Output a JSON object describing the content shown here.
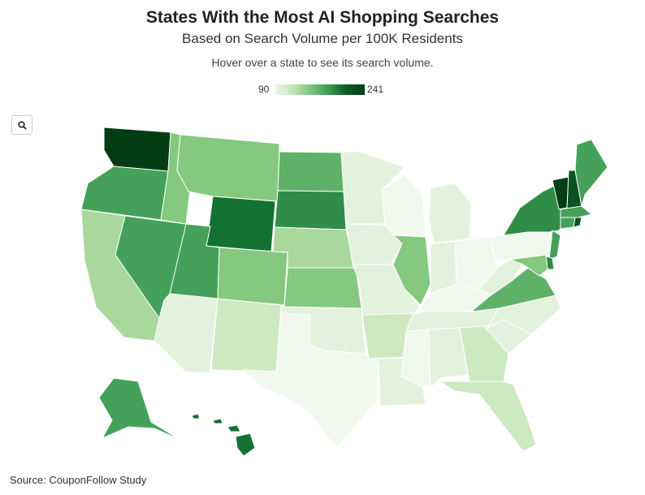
{
  "header": {
    "title": "States With the Most AI Shopping Searches",
    "subtitle": "Based on Search Volume per 100K Residents",
    "description": "Hover over a state to see its search volume."
  },
  "legend": {
    "min_label": "90",
    "max_label": "241",
    "min_color": "#eef7ea",
    "max_color": "#053f17"
  },
  "zoom": {
    "icon": "search-icon"
  },
  "footer": {
    "source": "Source: CouponFollow Study"
  },
  "colors": {
    "c0": "#f1f8ee",
    "c1": "#e3f2dc",
    "c2": "#cde9c2",
    "c3": "#a8d89c",
    "c4": "#85c87f",
    "c5": "#5fb16a",
    "c6": "#45a15a",
    "c7": "#2f8d48",
    "c8": "#137232",
    "c9": "#0a5222",
    "c10": "#043c14"
  },
  "states": [
    {
      "id": "WA",
      "shade": "c10"
    },
    {
      "id": "OR",
      "shade": "c6"
    },
    {
      "id": "CA",
      "shade": "c3"
    },
    {
      "id": "NV",
      "shade": "c6"
    },
    {
      "id": "ID",
      "shade": "c4"
    },
    {
      "id": "MT",
      "shade": "c4"
    },
    {
      "id": "WY",
      "shade": "c8"
    },
    {
      "id": "UT",
      "shade": "c6"
    },
    {
      "id": "AZ",
      "shade": "c1"
    },
    {
      "id": "NM",
      "shade": "c2"
    },
    {
      "id": "CO",
      "shade": "c4"
    },
    {
      "id": "ND",
      "shade": "c5"
    },
    {
      "id": "SD",
      "shade": "c7"
    },
    {
      "id": "NE",
      "shade": "c3"
    },
    {
      "id": "KS",
      "shade": "c4"
    },
    {
      "id": "OK",
      "shade": "c1"
    },
    {
      "id": "TX",
      "shade": "c0"
    },
    {
      "id": "MN",
      "shade": "c1"
    },
    {
      "id": "IA",
      "shade": "c1"
    },
    {
      "id": "MO",
      "shade": "c1"
    },
    {
      "id": "AR",
      "shade": "c2"
    },
    {
      "id": "LA",
      "shade": "c1"
    },
    {
      "id": "WI",
      "shade": "c0"
    },
    {
      "id": "IL",
      "shade": "c4"
    },
    {
      "id": "MI",
      "shade": "c1"
    },
    {
      "id": "IN",
      "shade": "c1"
    },
    {
      "id": "OH",
      "shade": "c0"
    },
    {
      "id": "KY",
      "shade": "c0"
    },
    {
      "id": "TN",
      "shade": "c1"
    },
    {
      "id": "MS",
      "shade": "c0"
    },
    {
      "id": "AL",
      "shade": "c1"
    },
    {
      "id": "GA",
      "shade": "c2"
    },
    {
      "id": "FL",
      "shade": "c2"
    },
    {
      "id": "SC",
      "shade": "c1"
    },
    {
      "id": "NC",
      "shade": "c1"
    },
    {
      "id": "VA",
      "shade": "c5"
    },
    {
      "id": "WV",
      "shade": "c1"
    },
    {
      "id": "PA",
      "shade": "c0"
    },
    {
      "id": "NY",
      "shade": "c7"
    },
    {
      "id": "VT",
      "shade": "c10"
    },
    {
      "id": "NH",
      "shade": "c9"
    },
    {
      "id": "ME",
      "shade": "c6"
    },
    {
      "id": "MA",
      "shade": "c6"
    },
    {
      "id": "CT",
      "shade": "c6"
    },
    {
      "id": "RI",
      "shade": "c9"
    },
    {
      "id": "NJ",
      "shade": "c6"
    },
    {
      "id": "DE",
      "shade": "c7"
    },
    {
      "id": "MD",
      "shade": "c4"
    },
    {
      "id": "AK",
      "shade": "c6"
    },
    {
      "id": "HI",
      "shade": "c8"
    }
  ]
}
